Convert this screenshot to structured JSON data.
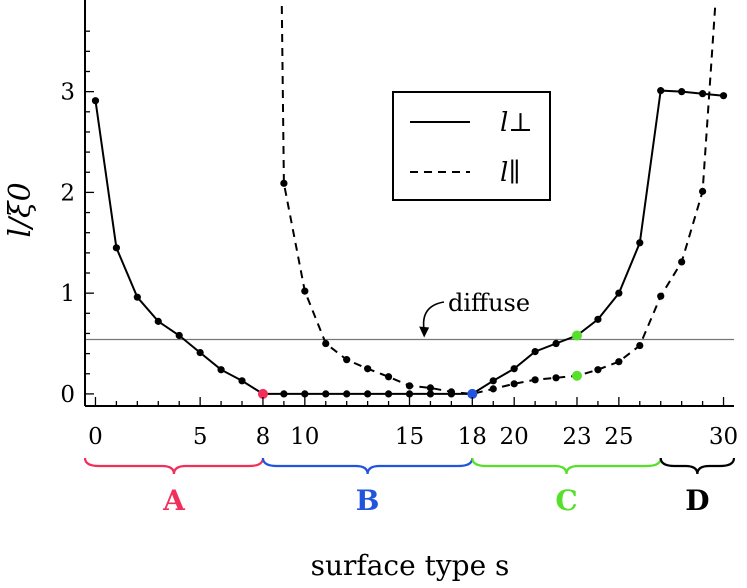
{
  "chart_data": {
    "type": "line",
    "xlabel": "surface type s",
    "ylabel": "l/ξ0",
    "xlim": [
      -0.5,
      30.5
    ],
    "ylim": [
      -0.12,
      3.85
    ],
    "x_ticks": [
      0,
      5,
      8,
      10,
      15,
      18,
      20,
      23,
      25,
      30
    ],
    "y_ticks": [
      0,
      1,
      2,
      3
    ],
    "grid": false,
    "legend_position": "top-right",
    "series": [
      {
        "name": "l⊥",
        "style": "solid",
        "x": [
          0,
          1,
          2,
          3,
          4,
          5,
          6,
          7,
          8,
          9,
          10,
          11,
          12,
          13,
          14,
          15,
          16,
          17,
          18,
          19,
          20,
          21,
          22,
          23,
          24,
          25,
          26,
          27,
          28,
          29,
          30
        ],
        "y": [
          2.91,
          1.45,
          0.96,
          0.72,
          0.58,
          0.41,
          0.24,
          0.13,
          0.0,
          0.0,
          0.0,
          0.0,
          0.0,
          0.0,
          0.0,
          0.0,
          0.0,
          0.0,
          0.0,
          0.13,
          0.25,
          0.42,
          0.5,
          0.58,
          0.74,
          1.0,
          1.5,
          3.01,
          3.0,
          2.98,
          2.96
        ]
      },
      {
        "name": "l∥",
        "style": "dashed",
        "x": [
          8.9,
          9,
          10,
          11,
          12,
          13,
          14,
          15,
          16,
          17,
          18,
          19,
          20,
          21,
          22,
          23,
          24,
          25,
          26,
          27,
          28,
          29,
          29.6
        ],
        "y": [
          3.85,
          2.09,
          1.02,
          0.5,
          0.34,
          0.25,
          0.17,
          0.08,
          0.06,
          0.02,
          0.0,
          0.05,
          0.1,
          0.14,
          0.16,
          0.18,
          0.24,
          0.32,
          0.48,
          0.97,
          1.31,
          2.01,
          3.85
        ],
        "markers_x": [
          9,
          10,
          11,
          12,
          13,
          14,
          15,
          16,
          17,
          18,
          19,
          20,
          21,
          22,
          23,
          24,
          25,
          26,
          27,
          28,
          29
        ]
      }
    ],
    "reference_line": {
      "y": 0.54
    },
    "highlighted_points": [
      {
        "x": 8,
        "y": 0.0,
        "color": "#f0305a"
      },
      {
        "x": 18,
        "y": 0.0,
        "color": "#2255dd"
      },
      {
        "x": 23,
        "y": 0.58,
        "color": "#55e02a"
      },
      {
        "x": 23,
        "y": 0.18,
        "color": "#55e02a"
      }
    ],
    "annotations": [
      {
        "text": "diffuse",
        "x": 16.5,
        "y": 0.9,
        "arrow_to": [
          15.7,
          0.55
        ]
      }
    ],
    "regions": [
      {
        "label": "A",
        "x_start": -0.5,
        "x_end": 8,
        "color": "#f0305a"
      },
      {
        "label": "B",
        "x_start": 8,
        "x_end": 18,
        "color": "#2255dd"
      },
      {
        "label": "C",
        "x_start": 18,
        "x_end": 27,
        "color": "#55e02a"
      },
      {
        "label": "D",
        "x_start": 27,
        "x_end": 30.5,
        "color": "#000000"
      }
    ],
    "legend": [
      {
        "label": "l⊥",
        "style": "solid"
      },
      {
        "label": "l∥",
        "style": "dashed"
      }
    ]
  }
}
